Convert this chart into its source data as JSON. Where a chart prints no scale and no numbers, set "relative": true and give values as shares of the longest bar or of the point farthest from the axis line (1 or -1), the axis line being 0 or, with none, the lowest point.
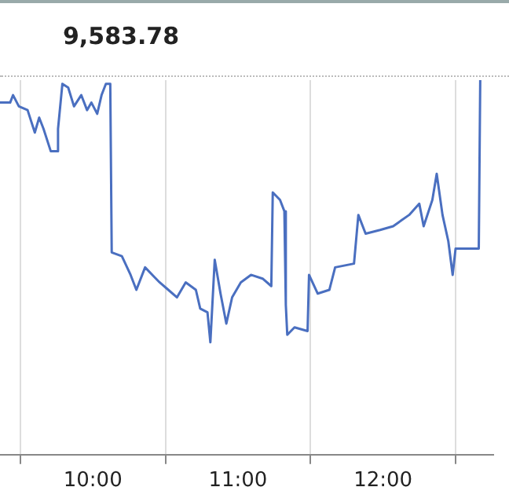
{
  "chart_data": {
    "type": "line",
    "relative": true,
    "annotations": [
      "9,583.78"
    ],
    "legend": false,
    "grid": "x",
    "marker": "none",
    "xlim": [
      9.36,
      12.76
    ],
    "xticks": [
      {
        "value": 9.5,
        "label": null
      },
      {
        "value": 10,
        "label": "10:00"
      },
      {
        "value": 10.5,
        "label": null
      },
      {
        "value": 11,
        "label": "11:00"
      },
      {
        "value": 11.5,
        "label": null
      },
      {
        "value": 12,
        "label": "12:00"
      },
      {
        "value": 12.5,
        "label": null
      }
    ],
    "series": [
      {
        "color": "#4a6fc0",
        "x": [
          9.36,
          9.43,
          9.45,
          9.49,
          9.55,
          9.6,
          9.63,
          9.66,
          9.71,
          9.75,
          9.76,
          9.79,
          9.83,
          9.87,
          9.92,
          9.96,
          9.99,
          10.03,
          10.06,
          10.09,
          10.12,
          10.13,
          10.2,
          10.26,
          10.3,
          10.36,
          10.41,
          10.46,
          10.52,
          10.58,
          10.64,
          10.71,
          10.74,
          10.79,
          10.81,
          10.84,
          10.88,
          10.92,
          10.96,
          11.02,
          11.09,
          11.17,
          11.23,
          11.24,
          11.29,
          11.32,
          11.33,
          11.34,
          11.39,
          11.48,
          11.49,
          11.55,
          11.63,
          11.67,
          11.8,
          11.83,
          11.88,
          11.98,
          12.07,
          12.18,
          12.25,
          12.28,
          12.34,
          12.37,
          12.41,
          12.45,
          12.48,
          12.5,
          12.66,
          12.67
        ],
        "values": [
          0.94,
          0.94,
          0.96,
          0.93,
          0.92,
          0.86,
          0.9,
          0.87,
          0.81,
          0.81,
          0.87,
          0.99,
          0.98,
          0.93,
          0.96,
          0.92,
          0.94,
          0.91,
          0.96,
          0.99,
          0.99,
          0.54,
          0.53,
          0.48,
          0.44,
          0.5,
          0.48,
          0.46,
          0.44,
          0.42,
          0.46,
          0.44,
          0.39,
          0.38,
          0.3,
          0.52,
          0.43,
          0.35,
          0.42,
          0.46,
          0.48,
          0.47,
          0.45,
          0.7,
          0.68,
          0.65,
          0.4,
          0.32,
          0.34,
          0.33,
          0.48,
          0.43,
          0.44,
          0.5,
          0.51,
          0.64,
          0.59,
          0.6,
          0.61,
          0.64,
          0.67,
          0.61,
          0.68,
          0.75,
          0.64,
          0.57,
          0.48,
          0.55,
          0.55,
          1.0
        ]
      }
    ]
  }
}
